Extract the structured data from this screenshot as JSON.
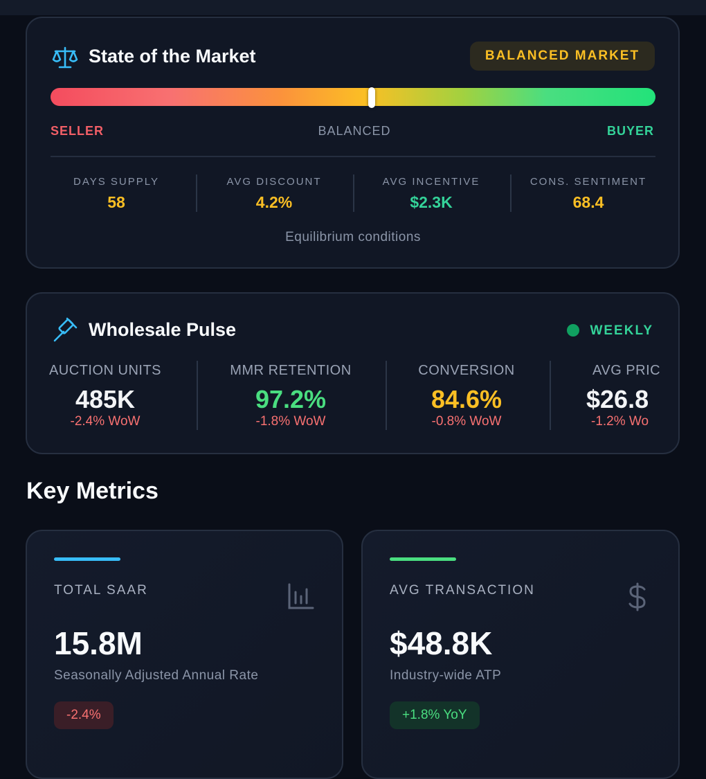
{
  "market": {
    "title": "State of the Market",
    "badge": "BALANCED MARKET",
    "scale": {
      "left": "SELLER",
      "center": "BALANCED",
      "right": "BUYER"
    },
    "stats": [
      {
        "label": "DAYS SUPPLY",
        "value": "58"
      },
      {
        "label": "AVG DISCOUNT",
        "value": "4.2%"
      },
      {
        "label": "AVG INCENTIVE",
        "value": "$2.3K"
      },
      {
        "label": "CONS. SENTIMENT",
        "value": "68.4"
      }
    ],
    "note": "Equilibrium conditions"
  },
  "wholesale": {
    "title": "Wholesale Pulse",
    "badge": "WEEKLY",
    "metrics": [
      {
        "label": "AUCTION UNITS",
        "value": "485K",
        "change": "-2.4% WoW"
      },
      {
        "label": "MMR RETENTION",
        "value": "97.2%",
        "change": "-1.8% WoW"
      },
      {
        "label": "CONVERSION",
        "value": "84.6%",
        "change": "-0.8% WoW"
      },
      {
        "label": "AVG PRIC",
        "value": "$26.8",
        "change": "-1.2% Wo"
      }
    ]
  },
  "key_metrics": {
    "title": "Key Metrics",
    "cards": [
      {
        "label": "TOTAL SAAR",
        "value": "15.8M",
        "description": "Seasonally Adjusted Annual Rate",
        "change": "-2.4%"
      },
      {
        "label": "AVG TRANSACTION",
        "value": "$48.8K",
        "description": "Industry-wide ATP",
        "change": "+1.8% YoY"
      }
    ]
  }
}
